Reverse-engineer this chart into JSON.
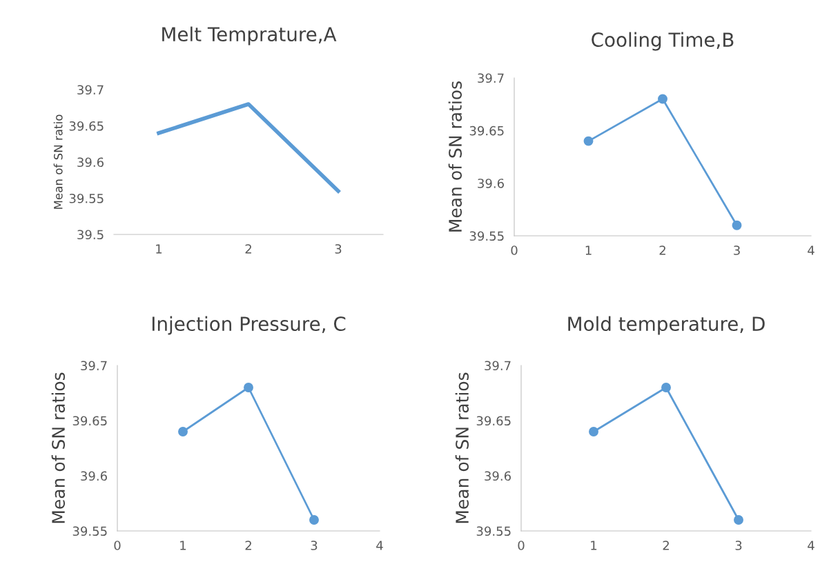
{
  "chart_data": [
    {
      "type": "line",
      "title": "Melt Temprature,A",
      "ylabel": "Mean of SN ratio",
      "categories": [
        "1",
        "2",
        "3"
      ],
      "series": [
        {
          "color": "#5b9bd5",
          "values": [
            39.64,
            39.68,
            39.56
          ]
        }
      ],
      "ylim": [
        39.5,
        39.7
      ],
      "yticks": [
        39.5,
        39.55,
        39.6,
        39.65,
        39.7
      ],
      "marker": "none",
      "grid": false,
      "legend": false
    },
    {
      "type": "line",
      "title": "Cooling Time,B",
      "ylabel": "Mean of SN ratios",
      "x": [
        1,
        2,
        3
      ],
      "series": [
        {
          "color": "#5b9bd5",
          "values": [
            39.64,
            39.68,
            39.56
          ]
        }
      ],
      "xlim": [
        0,
        4
      ],
      "xticks": [
        0,
        1,
        2,
        3,
        4
      ],
      "ylim": [
        39.55,
        39.7
      ],
      "yticks": [
        39.55,
        39.6,
        39.65,
        39.7
      ],
      "marker": "circle",
      "grid": false,
      "legend": false
    },
    {
      "type": "line",
      "title": "Injection Pressure, C",
      "ylabel": "Mean of SN ratios",
      "x": [
        1,
        2,
        3
      ],
      "series": [
        {
          "color": "#5b9bd5",
          "values": [
            39.64,
            39.68,
            39.56
          ]
        }
      ],
      "xlim": [
        0,
        4
      ],
      "xticks": [
        0,
        1,
        2,
        3,
        4
      ],
      "ylim": [
        39.55,
        39.7
      ],
      "yticks": [
        39.55,
        39.6,
        39.65,
        39.7
      ],
      "marker": "circle",
      "grid": false,
      "legend": false
    },
    {
      "type": "line",
      "title": "Mold temperature, D",
      "ylabel": "Mean of SN ratios",
      "x": [
        1,
        2,
        3
      ],
      "series": [
        {
          "color": "#5b9bd5",
          "values": [
            39.64,
            39.68,
            39.56
          ]
        }
      ],
      "xlim": [
        0,
        4
      ],
      "xticks": [
        0,
        1,
        2,
        3,
        4
      ],
      "ylim": [
        39.55,
        39.7
      ],
      "yticks": [
        39.55,
        39.6,
        39.65,
        39.7
      ],
      "marker": "circle",
      "grid": false,
      "legend": false
    }
  ]
}
